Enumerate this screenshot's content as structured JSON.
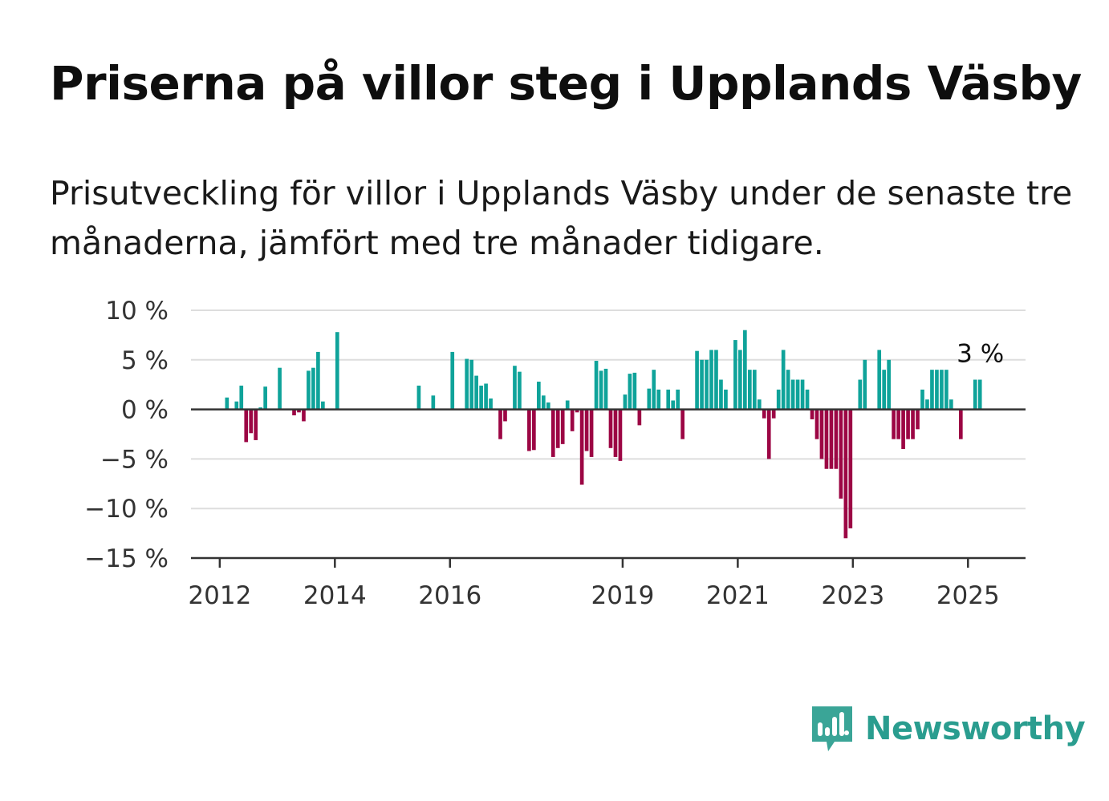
{
  "title": "Priserna på villor steg i Upplands Väsby",
  "subtitle": "Prisutveckling för villor i Upplands Väsby under de senaste tre månaderna, jämfört med tre månader tidigare.",
  "brand": {
    "name": "Newsworthy",
    "icon": "newsworthy-logo-icon",
    "color": "#3aa597"
  },
  "colors": {
    "positive": "#0fa39a",
    "negative": "#9c0644",
    "grid": "#dddddd",
    "axis": "#333333"
  },
  "chart_data": {
    "type": "bar",
    "unit": "%",
    "ylim": [
      -15,
      10
    ],
    "yticks": [
      10,
      5,
      0,
      -5,
      -10,
      -15
    ],
    "ytick_labels": [
      "10 %",
      "5 %",
      "0 %",
      "−5 %",
      "−10 %",
      "−15 %"
    ],
    "xtick_labels": [
      "2012",
      "2014",
      "2016",
      "2019",
      "2021",
      "2023",
      "2025"
    ],
    "xtick_dates": [
      "2012-01",
      "2014-01",
      "2016-01",
      "2019-01",
      "2021-01",
      "2023-01",
      "2025-01"
    ],
    "x_start": "2011-07",
    "x_end": "2025-12",
    "grid": true,
    "end_label": "3 %",
    "end_label_value": 3,
    "values": [
      {
        "date": "2012-02",
        "v": 1.2
      },
      {
        "date": "2012-04",
        "v": 0.8
      },
      {
        "date": "2012-05",
        "v": 2.4
      },
      {
        "date": "2012-06",
        "v": -3.3
      },
      {
        "date": "2012-07",
        "v": -2.4
      },
      {
        "date": "2012-08",
        "v": -3.1
      },
      {
        "date": "2012-09",
        "v": 0.2
      },
      {
        "date": "2012-10",
        "v": 2.3
      },
      {
        "date": "2013-01",
        "v": 4.2
      },
      {
        "date": "2013-04",
        "v": -0.6
      },
      {
        "date": "2013-05",
        "v": -0.3
      },
      {
        "date": "2013-06",
        "v": -1.2
      },
      {
        "date": "2013-07",
        "v": 3.9
      },
      {
        "date": "2013-08",
        "v": 4.2
      },
      {
        "date": "2013-09",
        "v": 5.8
      },
      {
        "date": "2013-10",
        "v": 0.8
      },
      {
        "date": "2014-01",
        "v": 7.8
      },
      {
        "date": "2015-06",
        "v": 2.4
      },
      {
        "date": "2015-09",
        "v": 1.4
      },
      {
        "date": "2016-01",
        "v": 5.8
      },
      {
        "date": "2016-04",
        "v": 5.1
      },
      {
        "date": "2016-05",
        "v": 5.0
      },
      {
        "date": "2016-06",
        "v": 3.4
      },
      {
        "date": "2016-07",
        "v": 2.4
      },
      {
        "date": "2016-08",
        "v": 2.6
      },
      {
        "date": "2016-09",
        "v": 1.1
      },
      {
        "date": "2016-11",
        "v": -3.0
      },
      {
        "date": "2016-12",
        "v": -1.2
      },
      {
        "date": "2017-02",
        "v": 4.4
      },
      {
        "date": "2017-03",
        "v": 3.8
      },
      {
        "date": "2017-05",
        "v": -4.2
      },
      {
        "date": "2017-06",
        "v": -4.1
      },
      {
        "date": "2017-07",
        "v": 2.8
      },
      {
        "date": "2017-08",
        "v": 1.4
      },
      {
        "date": "2017-09",
        "v": 0.7
      },
      {
        "date": "2017-10",
        "v": -4.8
      },
      {
        "date": "2017-11",
        "v": -3.9
      },
      {
        "date": "2017-12",
        "v": -3.5
      },
      {
        "date": "2018-01",
        "v": 0.9
      },
      {
        "date": "2018-02",
        "v": -2.2
      },
      {
        "date": "2018-03",
        "v": -0.3
      },
      {
        "date": "2018-04",
        "v": -7.6
      },
      {
        "date": "2018-05",
        "v": -4.2
      },
      {
        "date": "2018-06",
        "v": -4.8
      },
      {
        "date": "2018-07",
        "v": 4.9
      },
      {
        "date": "2018-08",
        "v": 3.9
      },
      {
        "date": "2018-09",
        "v": 4.1
      },
      {
        "date": "2018-10",
        "v": -3.9
      },
      {
        "date": "2018-11",
        "v": -4.8
      },
      {
        "date": "2018-12",
        "v": -5.2
      },
      {
        "date": "2019-01",
        "v": 1.5
      },
      {
        "date": "2019-02",
        "v": 3.6
      },
      {
        "date": "2019-03",
        "v": 3.7
      },
      {
        "date": "2019-04",
        "v": -1.6
      },
      {
        "date": "2019-06",
        "v": 2.1
      },
      {
        "date": "2019-07",
        "v": 4.0
      },
      {
        "date": "2019-08",
        "v": 2.0
      },
      {
        "date": "2019-10",
        "v": 2.0
      },
      {
        "date": "2019-11",
        "v": 0.9
      },
      {
        "date": "2019-12",
        "v": 2.0
      },
      {
        "date": "2020-01",
        "v": -3.0
      },
      {
        "date": "2020-04",
        "v": 5.9
      },
      {
        "date": "2020-05",
        "v": 5.0
      },
      {
        "date": "2020-06",
        "v": 5.0
      },
      {
        "date": "2020-07",
        "v": 6.0
      },
      {
        "date": "2020-08",
        "v": 6.0
      },
      {
        "date": "2020-09",
        "v": 3.0
      },
      {
        "date": "2020-10",
        "v": 2.0
      },
      {
        "date": "2020-12",
        "v": 7.0
      },
      {
        "date": "2021-01",
        "v": 6.0
      },
      {
        "date": "2021-02",
        "v": 8.0
      },
      {
        "date": "2021-03",
        "v": 4.0
      },
      {
        "date": "2021-04",
        "v": 4.0
      },
      {
        "date": "2021-05",
        "v": 1.0
      },
      {
        "date": "2021-06",
        "v": -0.9
      },
      {
        "date": "2021-07",
        "v": -5.0
      },
      {
        "date": "2021-08",
        "v": -0.9
      },
      {
        "date": "2021-09",
        "v": 2.0
      },
      {
        "date": "2021-10",
        "v": 6.0
      },
      {
        "date": "2021-11",
        "v": 4.0
      },
      {
        "date": "2021-12",
        "v": 3.0
      },
      {
        "date": "2022-01",
        "v": 3.0
      },
      {
        "date": "2022-02",
        "v": 3.0
      },
      {
        "date": "2022-03",
        "v": 2.0
      },
      {
        "date": "2022-04",
        "v": -1.0
      },
      {
        "date": "2022-05",
        "v": -3.0
      },
      {
        "date": "2022-06",
        "v": -5.0
      },
      {
        "date": "2022-07",
        "v": -6.0
      },
      {
        "date": "2022-08",
        "v": -6.0
      },
      {
        "date": "2022-09",
        "v": -6.0
      },
      {
        "date": "2022-10",
        "v": -9.0
      },
      {
        "date": "2022-11",
        "v": -13.0
      },
      {
        "date": "2022-12",
        "v": -12.0
      },
      {
        "date": "2023-02",
        "v": 3.0
      },
      {
        "date": "2023-03",
        "v": 5.0
      },
      {
        "date": "2023-06",
        "v": 6.0
      },
      {
        "date": "2023-07",
        "v": 4.0
      },
      {
        "date": "2023-08",
        "v": 5.0
      },
      {
        "date": "2023-09",
        "v": -3.0
      },
      {
        "date": "2023-10",
        "v": -3.0
      },
      {
        "date": "2023-11",
        "v": -4.0
      },
      {
        "date": "2023-12",
        "v": -3.0
      },
      {
        "date": "2024-01",
        "v": -3.0
      },
      {
        "date": "2024-02",
        "v": -2.0
      },
      {
        "date": "2024-03",
        "v": 2.0
      },
      {
        "date": "2024-04",
        "v": 1.0
      },
      {
        "date": "2024-05",
        "v": 4.0
      },
      {
        "date": "2024-06",
        "v": 4.0
      },
      {
        "date": "2024-07",
        "v": 4.0
      },
      {
        "date": "2024-08",
        "v": 4.0
      },
      {
        "date": "2024-09",
        "v": 1.0
      },
      {
        "date": "2024-11",
        "v": -3.0
      },
      {
        "date": "2025-02",
        "v": 3.0
      },
      {
        "date": "2025-03",
        "v": 3.0
      }
    ]
  }
}
